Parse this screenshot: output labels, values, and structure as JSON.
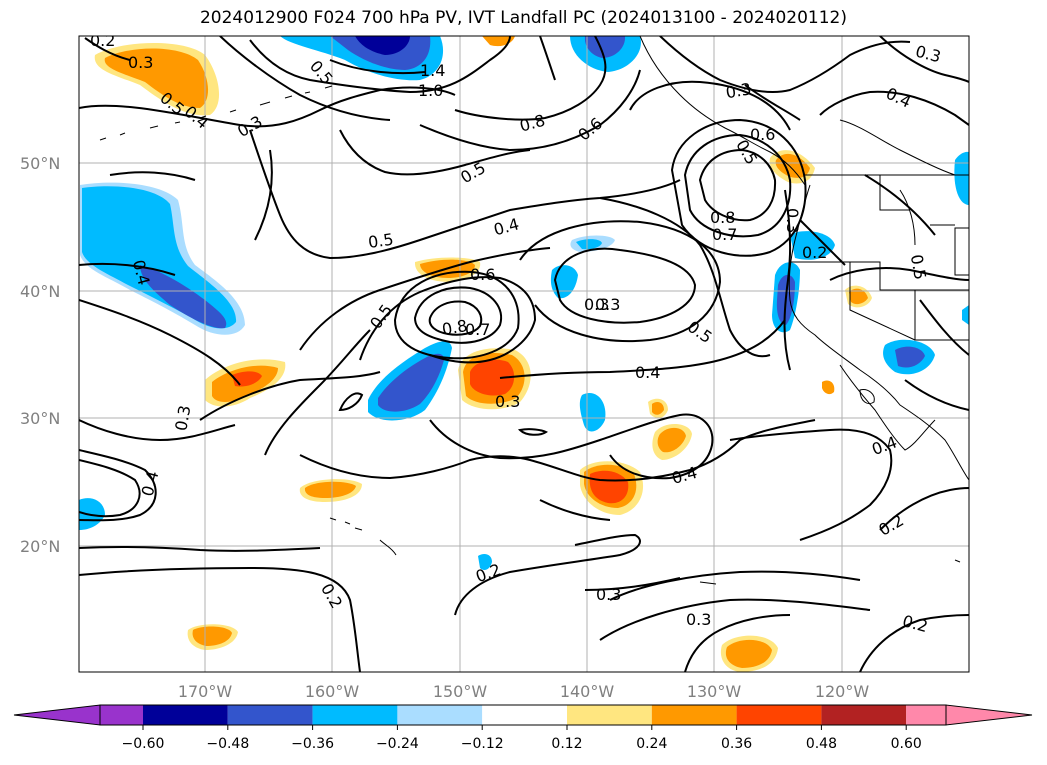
{
  "title": "2024012900 F024 700 hPa PV, IVT Landfall PC (2024013100 - 2024020112)",
  "map": {
    "lon_labels": [
      "170°W",
      "160°W",
      "150°W",
      "140°W",
      "130°W",
      "120°W"
    ],
    "lat_labels": [
      "50°N",
      "40°N",
      "30°N",
      "20°N"
    ],
    "grid_color": "#b0b0b0"
  },
  "contour_labels": [
    "0.2",
    "0.3",
    "0.5",
    "0.4",
    "0.3",
    "1.4",
    "1.0",
    "0.8",
    "0.6",
    "0.3",
    "0.3",
    "0.4",
    "0.5",
    "0.6",
    "0.5",
    "0.4",
    "0.6",
    "0.8",
    "0.7",
    "0.2",
    "0.5",
    "0.4",
    "0.5",
    "0.8",
    "0.7",
    "0.3",
    "0.5",
    "0.4",
    "0.3",
    "0.3",
    "0.4",
    "0.4",
    "0.4",
    "0.2",
    "0.2",
    "0.3",
    "0.3",
    "0.2",
    "0.2",
    "0.3",
    "0.5",
    "0.3",
    "0.5"
  ],
  "colorbar": {
    "ticks": [
      "−0.60",
      "−0.48",
      "−0.36",
      "−0.24",
      "−0.12",
      "0.12",
      "0.24",
      "0.36",
      "0.48",
      "0.60"
    ],
    "colors": [
      "#9933cc",
      "#000099",
      "#3355cc",
      "#00bbff",
      "#aaddff",
      "#ffffff",
      "#ffe680",
      "#ff9900",
      "#ff4400",
      "#b22222",
      "#ff88aa",
      "#ff88aa"
    ],
    "under_color": "#9933cc",
    "over_color": "#ff88aa"
  }
}
